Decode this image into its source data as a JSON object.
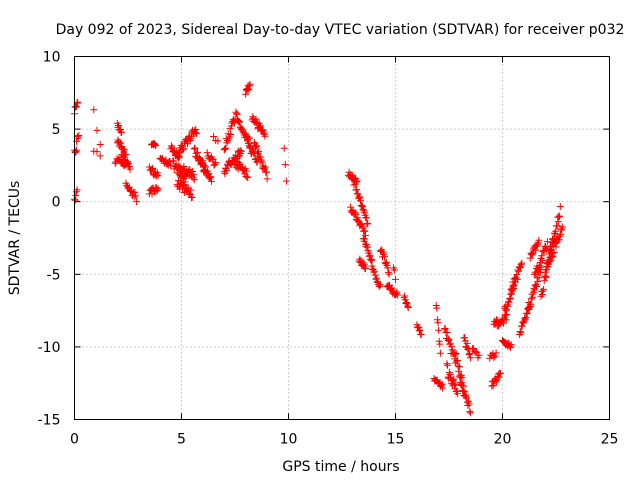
{
  "chart_data": {
    "type": "scatter",
    "title": "Day 092 of 2023, Sidereal Day-to-day VTEC variation (SDTVAR) for receiver p032",
    "xlabel": "GPS time / hours",
    "ylabel": "SDTVAR / TECUs",
    "xlim": [
      0,
      25
    ],
    "ylim": [
      -15,
      10
    ],
    "xticks": [
      0,
      5,
      10,
      15,
      20,
      25
    ],
    "yticks": [
      -15,
      -10,
      -5,
      0,
      5,
      10
    ],
    "x_tick_labels": [
      "0",
      "5",
      "10",
      "15",
      "20",
      "25"
    ],
    "y_tick_labels": [
      "-15",
      "-10",
      "-5",
      "0",
      "5",
      "10"
    ],
    "grid": true,
    "marker": "+",
    "color": "#ff0000",
    "series": [
      {
        "name": "SDTVAR",
        "segments": [
          {
            "x0": 0.0,
            "x1": 0.1,
            "y0": 3.4,
            "y1": 3.5,
            "step": 0.03,
            "noise": 0.15
          },
          {
            "x0": 0.0,
            "x1": 0.15,
            "y0": 6.2,
            "y1": 6.9,
            "step": 0.03,
            "noise": 0.2
          },
          {
            "x0": 0.0,
            "x1": 0.12,
            "y0": 0.0,
            "y1": 0.9,
            "step": 0.03,
            "noise": 0.2
          },
          {
            "x0": 0.1,
            "x1": 0.2,
            "y0": 4.2,
            "y1": 4.6,
            "step": 0.03,
            "noise": 0.15
          },
          {
            "x0": 0.9,
            "x1": 1.2,
            "y0": 6.2,
            "y1": 4.2,
            "step": 0.15,
            "noise": 0.3
          },
          {
            "x0": 0.9,
            "x1": 1.2,
            "y0": 3.6,
            "y1": 3.1,
            "step": 0.15,
            "noise": 0.2
          },
          {
            "x0": 2.0,
            "x1": 2.2,
            "y0": 5.4,
            "y1": 4.6,
            "step": 0.03,
            "noise": 0.2
          },
          {
            "x0": 2.0,
            "x1": 2.4,
            "y0": 4.2,
            "y1": 3.4,
            "step": 0.03,
            "noise": 0.2
          },
          {
            "x0": 2.2,
            "x1": 2.6,
            "y0": 3.2,
            "y1": 2.4,
            "step": 0.03,
            "noise": 0.2
          },
          {
            "x0": 1.9,
            "x1": 2.5,
            "y0": 2.8,
            "y1": 2.5,
            "step": 0.04,
            "noise": 0.2
          },
          {
            "x0": 2.4,
            "x1": 2.9,
            "y0": 1.4,
            "y1": 0.2,
            "step": 0.04,
            "noise": 0.3
          },
          {
            "x0": 3.6,
            "x1": 3.8,
            "y0": 4.0,
            "y1": 3.9,
            "step": 0.03,
            "noise": 0.1
          },
          {
            "x0": 3.5,
            "x1": 3.9,
            "y0": 2.3,
            "y1": 1.8,
            "step": 0.03,
            "noise": 0.2
          },
          {
            "x0": 3.5,
            "x1": 3.9,
            "y0": 0.6,
            "y1": 1.0,
            "step": 0.03,
            "noise": 0.2
          },
          {
            "x0": 4.0,
            "x1": 4.5,
            "y0": 3.0,
            "y1": 2.6,
            "step": 0.04,
            "noise": 0.2
          },
          {
            "x0": 4.5,
            "x1": 4.9,
            "y0": 3.7,
            "y1": 3.1,
            "step": 0.03,
            "noise": 0.2
          },
          {
            "x0": 4.6,
            "x1": 5.2,
            "y0": 2.6,
            "y1": 1.6,
            "step": 0.03,
            "noise": 0.3
          },
          {
            "x0": 4.8,
            "x1": 5.7,
            "y0": 3.3,
            "y1": 5.0,
            "step": 0.03,
            "noise": 0.3
          },
          {
            "x0": 4.9,
            "x1": 5.6,
            "y0": 2.3,
            "y1": 1.8,
            "step": 0.03,
            "noise": 0.3
          },
          {
            "x0": 4.8,
            "x1": 5.5,
            "y0": 1.3,
            "y1": 0.5,
            "step": 0.03,
            "noise": 0.3
          },
          {
            "x0": 5.6,
            "x1": 6.1,
            "y0": 3.5,
            "y1": 2.2,
            "step": 0.03,
            "noise": 0.3
          },
          {
            "x0": 5.8,
            "x1": 6.4,
            "y0": 3.0,
            "y1": 1.5,
            "step": 0.03,
            "noise": 0.3
          },
          {
            "x0": 6.2,
            "x1": 6.6,
            "y0": 3.3,
            "y1": 2.5,
            "step": 0.04,
            "noise": 0.2
          },
          {
            "x0": 6.5,
            "x1": 6.7,
            "y0": 4.4,
            "y1": 4.2,
            "step": 0.1,
            "noise": 0.1
          },
          {
            "x0": 7.0,
            "x1": 7.6,
            "y0": 3.7,
            "y1": 6.1,
            "step": 0.03,
            "noise": 0.3
          },
          {
            "x0": 7.0,
            "x1": 7.8,
            "y0": 2.1,
            "y1": 3.6,
            "step": 0.03,
            "noise": 0.3
          },
          {
            "x0": 7.6,
            "x1": 8.2,
            "y0": 5.8,
            "y1": 4.0,
            "step": 0.03,
            "noise": 0.3
          },
          {
            "x0": 7.5,
            "x1": 8.1,
            "y0": 2.7,
            "y1": 1.9,
            "step": 0.03,
            "noise": 0.3
          },
          {
            "x0": 8.0,
            "x1": 8.2,
            "y0": 7.5,
            "y1": 8.0,
            "step": 0.03,
            "noise": 0.2
          },
          {
            "x0": 8.1,
            "x1": 8.6,
            "y0": 4.0,
            "y1": 2.7,
            "step": 0.03,
            "noise": 0.3
          },
          {
            "x0": 8.3,
            "x1": 8.9,
            "y0": 5.8,
            "y1": 4.6,
            "step": 0.03,
            "noise": 0.3
          },
          {
            "x0": 8.4,
            "x1": 9.0,
            "y0": 4.0,
            "y1": 1.8,
            "step": 0.03,
            "noise": 0.3
          },
          {
            "x0": 9.8,
            "x1": 9.9,
            "y0": 3.9,
            "y1": 1.2,
            "step": 0.05,
            "noise": 0.3
          },
          {
            "x0": 12.8,
            "x1": 13.2,
            "y0": 1.9,
            "y1": 1.4,
            "step": 0.03,
            "noise": 0.2
          },
          {
            "x0": 12.9,
            "x1": 13.6,
            "y0": -0.4,
            "y1": -2.2,
            "step": 0.03,
            "noise": 0.2
          },
          {
            "x0": 13.0,
            "x1": 13.7,
            "y0": 1.6,
            "y1": -1.5,
            "step": 0.03,
            "noise": 0.2
          },
          {
            "x0": 13.5,
            "x1": 13.9,
            "y0": -2.5,
            "y1": -4.1,
            "step": 0.03,
            "noise": 0.2
          },
          {
            "x0": 13.3,
            "x1": 13.6,
            "y0": -4.0,
            "y1": -4.6,
            "step": 0.03,
            "noise": 0.2
          },
          {
            "x0": 13.9,
            "x1": 14.3,
            "y0": -4.5,
            "y1": -5.9,
            "step": 0.03,
            "noise": 0.2
          },
          {
            "x0": 14.3,
            "x1": 14.7,
            "y0": -3.2,
            "y1": -5.0,
            "step": 0.03,
            "noise": 0.3
          },
          {
            "x0": 14.6,
            "x1": 15.1,
            "y0": -5.8,
            "y1": -6.4,
            "step": 0.03,
            "noise": 0.2
          },
          {
            "x0": 14.9,
            "x1": 15.0,
            "y0": -4.4,
            "y1": -5.3,
            "step": 0.05,
            "noise": 0.2
          },
          {
            "x0": 15.4,
            "x1": 15.6,
            "y0": -6.6,
            "y1": -7.2,
            "step": 0.03,
            "noise": 0.2
          },
          {
            "x0": 16.0,
            "x1": 16.2,
            "y0": -8.6,
            "y1": -9.2,
            "step": 0.03,
            "noise": 0.2
          },
          {
            "x0": 16.8,
            "x1": 17.2,
            "y0": -12.3,
            "y1": -12.8,
            "step": 0.03,
            "noise": 0.2
          },
          {
            "x0": 16.9,
            "x1": 17.1,
            "y0": -7.0,
            "y1": -10.5,
            "step": 0.03,
            "noise": 0.2
          },
          {
            "x0": 17.3,
            "x1": 17.8,
            "y0": -8.8,
            "y1": -11.0,
            "step": 0.03,
            "noise": 0.4
          },
          {
            "x0": 17.4,
            "x1": 17.9,
            "y0": -11.5,
            "y1": -13.2,
            "step": 0.03,
            "noise": 0.4
          },
          {
            "x0": 17.8,
            "x1": 18.2,
            "y0": -10.5,
            "y1": -13.0,
            "step": 0.03,
            "noise": 0.4
          },
          {
            "x0": 18.0,
            "x1": 18.5,
            "y0": -12.3,
            "y1": -14.3,
            "step": 0.03,
            "noise": 0.3
          },
          {
            "x0": 18.2,
            "x1": 18.5,
            "y0": -9.3,
            "y1": -10.8,
            "step": 0.03,
            "noise": 0.3
          },
          {
            "x0": 18.6,
            "x1": 18.9,
            "y0": -10.1,
            "y1": -10.7,
            "step": 0.05,
            "noise": 0.2
          },
          {
            "x0": 19.5,
            "x1": 19.9,
            "y0": -12.6,
            "y1": -11.9,
            "step": 0.03,
            "noise": 0.2
          },
          {
            "x0": 19.4,
            "x1": 19.7,
            "y0": -10.8,
            "y1": -10.5,
            "step": 0.05,
            "noise": 0.2
          },
          {
            "x0": 19.6,
            "x1": 20.2,
            "y0": -8.4,
            "y1": -8.0,
            "step": 0.03,
            "noise": 0.3
          },
          {
            "x0": 20.0,
            "x1": 20.4,
            "y0": -9.6,
            "y1": -10.0,
            "step": 0.03,
            "noise": 0.2
          },
          {
            "x0": 20.1,
            "x1": 20.6,
            "y0": -7.6,
            "y1": -5.4,
            "step": 0.03,
            "noise": 0.3
          },
          {
            "x0": 20.4,
            "x1": 20.9,
            "y0": -6.1,
            "y1": -4.4,
            "step": 0.03,
            "noise": 0.3
          },
          {
            "x0": 20.8,
            "x1": 21.3,
            "y0": -9.1,
            "y1": -7.1,
            "step": 0.03,
            "noise": 0.2
          },
          {
            "x0": 21.2,
            "x1": 21.8,
            "y0": -7.3,
            "y1": -4.6,
            "step": 0.03,
            "noise": 0.3
          },
          {
            "x0": 21.3,
            "x1": 21.7,
            "y0": -3.7,
            "y1": -2.8,
            "step": 0.03,
            "noise": 0.2
          },
          {
            "x0": 21.5,
            "x1": 22.1,
            "y0": -5.0,
            "y1": -3.0,
            "step": 0.03,
            "noise": 0.3
          },
          {
            "x0": 21.8,
            "x1": 22.4,
            "y0": -6.6,
            "y1": -2.4,
            "step": 0.03,
            "noise": 0.3
          },
          {
            "x0": 22.0,
            "x1": 22.7,
            "y0": -4.9,
            "y1": -0.6,
            "step": 0.03,
            "noise": 0.3
          },
          {
            "x0": 22.2,
            "x1": 22.8,
            "y0": -4.0,
            "y1": -1.9,
            "step": 0.03,
            "noise": 0.3
          }
        ]
      }
    ]
  }
}
